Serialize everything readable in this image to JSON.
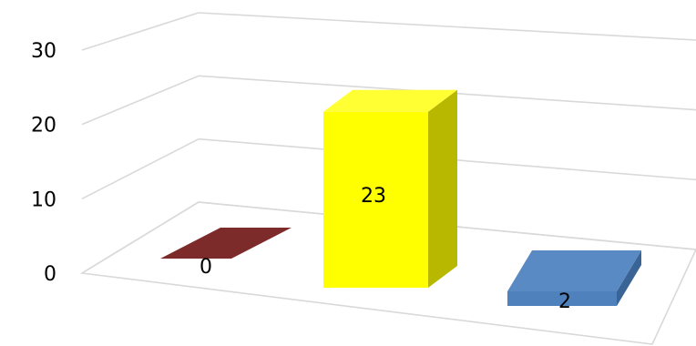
{
  "chart_data": {
    "type": "bar",
    "categories": [
      "",
      "",
      ""
    ],
    "values": [
      0,
      23,
      2
    ],
    "ylim": [
      0,
      30
    ],
    "yticks": [
      0,
      10,
      20,
      30
    ],
    "grid": true,
    "legend": "none",
    "title": "",
    "xlabel": "",
    "ylabel": "",
    "colors": {
      "bar_front": [
        "#7d2b2a",
        "#ffff00",
        "#4f81bd"
      ],
      "bar_top": [
        "#963432",
        "#ffff33",
        "#5a8ac4"
      ],
      "bar_side": [
        "#5a1f1e",
        "#b8b800",
        "#3b6496"
      ],
      "grid": "#d9d9d9",
      "text": "#000000"
    },
    "data_labels": [
      "0",
      "23",
      "2"
    ],
    "tick_labels": [
      "0",
      "10",
      "20",
      "30"
    ]
  }
}
